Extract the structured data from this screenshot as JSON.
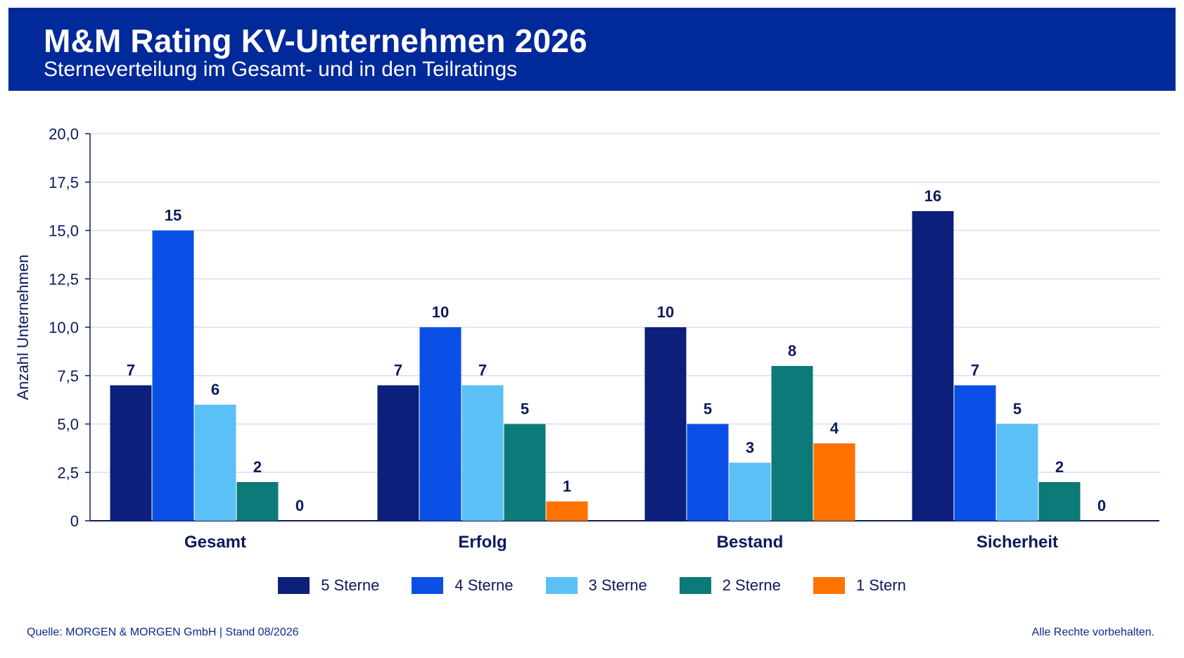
{
  "header": {
    "title": "M&M Rating KV-Unternehmen 2026",
    "subtitle": "Sterneverteilung im Gesamt- und in den Teilratings"
  },
  "chart_data": {
    "type": "bar",
    "ylabel": "Anzahl Unternehmen",
    "ylim": [
      0,
      20
    ],
    "yticks": [
      "0",
      "2,5",
      "5,0",
      "7,5",
      "10,0",
      "12,5",
      "15,0",
      "17,5",
      "20,0"
    ],
    "grid": true,
    "legend_position": "bottom",
    "categories": [
      "Gesamt",
      "Erfolg",
      "Bestand",
      "Sicherheit"
    ],
    "series": [
      {
        "name": "5 Sterne",
        "color": "#0c1f7a",
        "values": [
          7,
          7,
          10,
          16
        ]
      },
      {
        "name": "4 Sterne",
        "color": "#0a4fe6",
        "values": [
          15,
          10,
          5,
          7
        ]
      },
      {
        "name": "3 Sterne",
        "color": "#5bc0f5",
        "values": [
          6,
          7,
          3,
          5
        ]
      },
      {
        "name": "2 Sterne",
        "color": "#0b7a78",
        "values": [
          2,
          5,
          8,
          2
        ]
      },
      {
        "name": "1 Stern",
        "color": "#ff7200",
        "values": [
          0,
          1,
          4,
          0
        ]
      }
    ]
  },
  "footer": {
    "source": "Quelle: MORGEN & MORGEN GmbH | Stand 08/2026",
    "rights": "Alle Rechte vorbehalten."
  }
}
